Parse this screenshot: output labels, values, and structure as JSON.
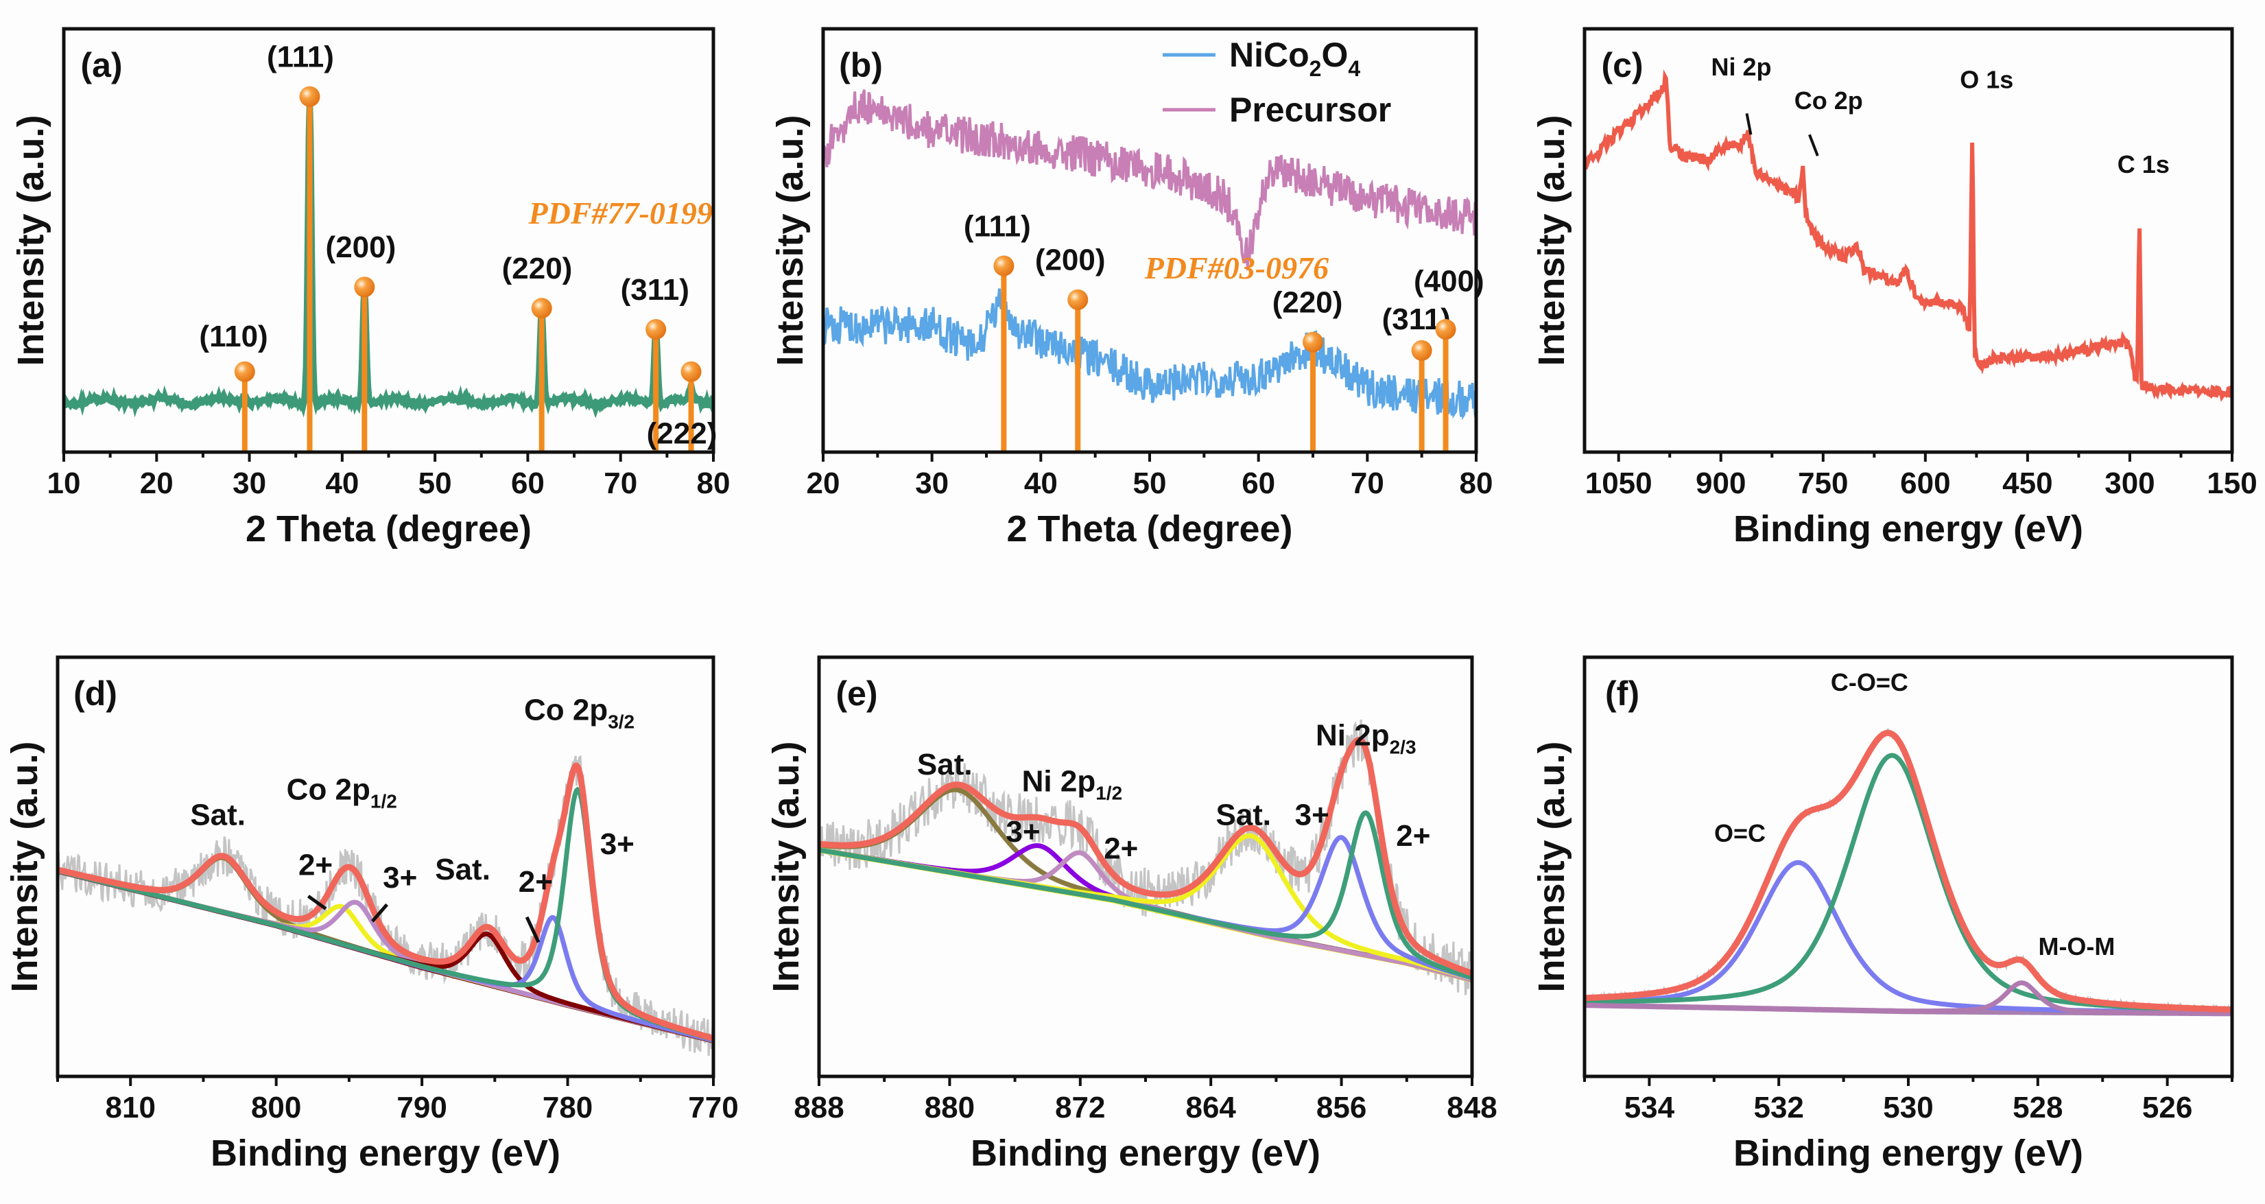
{
  "chart_data": [
    {
      "panel_label": "(a)",
      "type": "line",
      "xlabel": "2 Theta (degree)",
      "ylabel": "Intensity (a.u.)",
      "xlim": [
        10,
        80
      ],
      "xticks": [
        10,
        20,
        30,
        40,
        50,
        60,
        70,
        80
      ],
      "minor_step": 5,
      "reversed": false,
      "colors": {
        "pattern": "#3d9a78",
        "reference": "#f28a1e"
      },
      "pattern": {
        "baseline": 0.12,
        "peaks": [
          {
            "two_theta": 29.5,
            "intensity": 0.14
          },
          {
            "two_theta": 36.5,
            "intensity": 0.84
          },
          {
            "two_theta": 42.4,
            "intensity": 0.39
          },
          {
            "two_theta": 61.5,
            "intensity": 0.34
          },
          {
            "two_theta": 73.8,
            "intensity": 0.29
          },
          {
            "two_theta": 77.6,
            "intensity": 0.15
          }
        ]
      },
      "reference_card": "PDF#77-0199",
      "reference_card_pos": [
        70,
        0.54
      ],
      "reference_lines": [
        {
          "hkl": "(110)",
          "two_theta": 29.5,
          "intensity": 0.19,
          "label_pos": [
            28.3,
            0.25
          ]
        },
        {
          "hkl": "(111)",
          "two_theta": 36.5,
          "intensity": 0.84,
          "label_pos": [
            35.5,
            0.91
          ]
        },
        {
          "hkl": "(200)",
          "two_theta": 42.4,
          "intensity": 0.39,
          "label_pos": [
            42.0,
            0.46
          ]
        },
        {
          "hkl": "(220)",
          "two_theta": 61.5,
          "intensity": 0.34,
          "label_pos": [
            61.0,
            0.41
          ]
        },
        {
          "hkl": "(311)",
          "two_theta": 73.8,
          "intensity": 0.29,
          "label_pos": [
            73.7,
            0.36
          ]
        },
        {
          "hkl": "(222)",
          "two_theta": 77.6,
          "intensity": 0.19,
          "label_pos": [
            76.6,
            0.02
          ]
        }
      ]
    },
    {
      "panel_label": "(b)",
      "type": "line",
      "xlabel": "2 Theta (degree)",
      "ylabel": "Intensity (a.u.)",
      "xlim": [
        20,
        80
      ],
      "xticks": [
        20,
        30,
        40,
        50,
        60,
        70,
        80
      ],
      "minor_step": 5,
      "reversed": false,
      "legend": "top-right",
      "series": [
        {
          "name": "NiCo",
          "sub1": "2",
          "mid": "O",
          "sub2": "4",
          "color": "#5aa6e6",
          "trend": [
            [
              20,
              0.3
            ],
            [
              30,
              0.3
            ],
            [
              34,
              0.24
            ],
            [
              36.5,
              0.36
            ],
            [
              38,
              0.28
            ],
            [
              45,
              0.22
            ],
            [
              50,
              0.16
            ],
            [
              60,
              0.18
            ],
            [
              65,
              0.25
            ],
            [
              70,
              0.15
            ],
            [
              80,
              0.12
            ]
          ]
        },
        {
          "name": "Precursor",
          "color": "#c77fb5",
          "trend": [
            [
              20,
              0.7
            ],
            [
              23,
              0.82
            ],
            [
              30,
              0.76
            ],
            [
              40,
              0.72
            ],
            [
              52,
              0.66
            ],
            [
              57,
              0.6
            ],
            [
              59,
              0.47
            ],
            [
              61,
              0.67
            ],
            [
              70,
              0.6
            ],
            [
              80,
              0.55
            ]
          ]
        }
      ],
      "reference_card": "PDF#03-0976",
      "reference_card_pos": [
        58,
        0.41
      ],
      "reference_lines": [
        {
          "hkl": "(111)",
          "two_theta": 36.6,
          "intensity": 0.44,
          "label_pos": [
            36.0,
            0.51
          ]
        },
        {
          "hkl": "(200)",
          "two_theta": 43.4,
          "intensity": 0.36,
          "label_pos": [
            42.7,
            0.43
          ]
        },
        {
          "hkl": "(220)",
          "two_theta": 65.0,
          "intensity": 0.26,
          "label_pos": [
            64.5,
            0.33
          ]
        },
        {
          "hkl": "(311)",
          "two_theta": 75.0,
          "intensity": 0.24,
          "label_pos": [
            74.5,
            0.29
          ]
        },
        {
          "hkl": "(400)",
          "two_theta": 77.2,
          "intensity": 0.29,
          "label_pos": [
            77.5,
            0.38
          ]
        }
      ]
    },
    {
      "panel_label": "(c)",
      "type": "line",
      "xlabel": "Binding energy (eV)",
      "ylabel": "Intensity (a.u.)",
      "xlim": [
        1100,
        150
      ],
      "xticks": [
        1050,
        900,
        750,
        600,
        450,
        300,
        150
      ],
      "minor_step": 75,
      "reversed": true,
      "color": "#ee5b4a",
      "spectrum": [
        [
          1100,
          0.68
        ],
        [
          1060,
          0.74
        ],
        [
          1020,
          0.8
        ],
        [
          985,
          0.86
        ],
        [
          980,
          0.89
        ],
        [
          975,
          0.72
        ],
        [
          950,
          0.7
        ],
        [
          920,
          0.69
        ],
        [
          900,
          0.72
        ],
        [
          870,
          0.73
        ],
        [
          860,
          0.76
        ],
        [
          850,
          0.66
        ],
        [
          800,
          0.62
        ],
        [
          785,
          0.6
        ],
        [
          780,
          0.68
        ],
        [
          775,
          0.56
        ],
        [
          760,
          0.5
        ],
        [
          720,
          0.46
        ],
        [
          700,
          0.49
        ],
        [
          690,
          0.43
        ],
        [
          640,
          0.4
        ],
        [
          630,
          0.43
        ],
        [
          610,
          0.36
        ],
        [
          560,
          0.35
        ],
        [
          545,
          0.34
        ],
        [
          535,
          0.28
        ],
        [
          531,
          0.78
        ],
        [
          528,
          0.25
        ],
        [
          522,
          0.21
        ],
        [
          500,
          0.22
        ],
        [
          400,
          0.23
        ],
        [
          310,
          0.26
        ],
        [
          300,
          0.25
        ],
        [
          292,
          0.17
        ],
        [
          289,
          0.17
        ],
        [
          286,
          0.58
        ],
        [
          283,
          0.16
        ],
        [
          270,
          0.15
        ],
        [
          150,
          0.14
        ]
      ],
      "annotations": [
        {
          "text": "Ni 2p",
          "pos": [
            870,
            0.89
          ]
        },
        {
          "text": "Co 2p",
          "pos": [
            742,
            0.81
          ]
        },
        {
          "text": "O 1s",
          "pos": [
            510,
            0.86
          ]
        },
        {
          "text": "C 1s",
          "pos": [
            280,
            0.66
          ]
        }
      ]
    },
    {
      "panel_label": "(d)",
      "type": "line",
      "xlabel": "Binding energy (eV)",
      "ylabel": "Intensity (a.u.)",
      "xlim": [
        815,
        770
      ],
      "xticks": [
        810,
        800,
        790,
        780,
        770
      ],
      "minor_step": 5,
      "reversed": true,
      "raw_color": "#c4c4c4",
      "envelope_color": "#f0665a",
      "background": {
        "color": "#7a0f0f",
        "points": [
          [
            815,
            0.49
          ],
          [
            800,
            0.36
          ],
          [
            790,
            0.26
          ],
          [
            780,
            0.17
          ],
          [
            770,
            0.085
          ]
        ]
      },
      "components": [
        {
          "center": 803.6,
          "height": 0.13,
          "fwhm": 4.0,
          "color": "#8a7a40"
        },
        {
          "center": 795.5,
          "height": 0.09,
          "fwhm": 3.0,
          "color": "#f0f020"
        },
        {
          "center": 794.5,
          "height": 0.11,
          "fwhm": 3.0,
          "color": "#b98ac8"
        },
        {
          "center": 785.5,
          "height": 0.12,
          "fwhm": 3.0,
          "color": "#800000"
        },
        {
          "center": 781.0,
          "height": 0.2,
          "fwhm": 2.2,
          "color": "#7b7bf0"
        },
        {
          "center": 779.3,
          "height": 0.52,
          "fwhm": 2.2,
          "color": "#3d9e79"
        }
      ],
      "annotations": [
        {
          "text": "Sat.",
          "pos": [
            804,
            0.6
          ]
        },
        {
          "text": "Co 2p",
          "sub": "1/2",
          "pos": [
            795.5,
            0.66
          ]
        },
        {
          "text": "2+",
          "pos": [
            797.3,
            0.48
          ]
        },
        {
          "text": "3+",
          "pos": [
            791.5,
            0.45
          ]
        },
        {
          "text": "Sat.",
          "pos": [
            787.2,
            0.47
          ]
        },
        {
          "text": "2+",
          "pos": [
            782.2,
            0.44
          ]
        },
        {
          "text": "3+",
          "pos": [
            776.6,
            0.53
          ]
        },
        {
          "text": "Co 2p",
          "sub": "3/2",
          "pos": [
            779.2,
            0.85
          ]
        }
      ]
    },
    {
      "panel_label": "(e)",
      "type": "line",
      "xlabel": "Binding energy (eV)",
      "ylabel": "Intensity (a.u.)",
      "xlim": [
        888,
        848
      ],
      "xticks": [
        888,
        880,
        872,
        864,
        856,
        848
      ],
      "minor_step": 4,
      "reversed": true,
      "raw_color": "#c4c4c4",
      "envelope_color": "#f0665a",
      "background": {
        "color": "#e8e830",
        "points": [
          [
            888,
            0.54
          ],
          [
            870,
            0.42
          ],
          [
            860,
            0.33
          ],
          [
            852,
            0.27
          ],
          [
            848,
            0.23
          ]
        ]
      },
      "components": [
        {
          "center": 879.5,
          "height": 0.2,
          "fwhm": 6.0,
          "color": "#8a7a40"
        },
        {
          "center": 874.5,
          "height": 0.1,
          "fwhm": 4.0,
          "color": "#8a00e0"
        },
        {
          "center": 872.0,
          "height": 0.1,
          "fwhm": 3.0,
          "color": "#c08cc0"
        },
        {
          "center": 861.5,
          "height": 0.23,
          "fwhm": 5.0,
          "color": "#f0f020"
        },
        {
          "center": 856.0,
          "height": 0.27,
          "fwhm": 3.0,
          "color": "#7b7bf0"
        },
        {
          "center": 854.5,
          "height": 0.34,
          "fwhm": 2.5,
          "color": "#3d9e79"
        }
      ],
      "annotations": [
        {
          "text": "Sat.",
          "pos": [
            880.3,
            0.72
          ]
        },
        {
          "text": "Ni 2p",
          "sub": "1/2",
          "pos": [
            872.5,
            0.68
          ]
        },
        {
          "text": "3+",
          "pos": [
            875.5,
            0.56
          ]
        },
        {
          "text": "2+",
          "pos": [
            869.5,
            0.52
          ]
        },
        {
          "text": "Sat.",
          "pos": [
            862.0,
            0.6
          ]
        },
        {
          "text": "3+",
          "pos": [
            857.8,
            0.6
          ]
        },
        {
          "text": "Ni 2p",
          "sub": "2/3",
          "pos": [
            854.5,
            0.79
          ]
        },
        {
          "text": "2+",
          "pos": [
            851.6,
            0.55
          ]
        }
      ]
    },
    {
      "panel_label": "(f)",
      "type": "line",
      "xlabel": "Binding energy (eV)",
      "ylabel": "Intensity (a.u.)",
      "xlim": [
        535,
        525
      ],
      "xticks": [
        534,
        532,
        530,
        528,
        526
      ],
      "minor_step": 1,
      "reversed": true,
      "raw_color": "#c4c4c4",
      "envelope_color": "#f0665a",
      "background": {
        "color": "#a97fb0",
        "points": [
          [
            535,
            0.17
          ],
          [
            530,
            0.155
          ],
          [
            525,
            0.15
          ]
        ]
      },
      "components": [
        {
          "center": 531.7,
          "height": 0.35,
          "fwhm": 1.5,
          "color": "#7b7bf0"
        },
        {
          "center": 530.25,
          "height": 0.61,
          "fwhm": 1.6,
          "color": "#3d9e79"
        },
        {
          "center": 528.25,
          "height": 0.07,
          "fwhm": 0.6,
          "color": "#b07ab0"
        }
      ],
      "annotations": [
        {
          "text": "C-O=C",
          "pos": [
            530.6,
            0.92
          ]
        },
        {
          "text": "O=C",
          "pos": [
            532.6,
            0.56
          ]
        },
        {
          "text": "M-O-M",
          "pos": [
            527.4,
            0.29
          ]
        }
      ]
    }
  ]
}
